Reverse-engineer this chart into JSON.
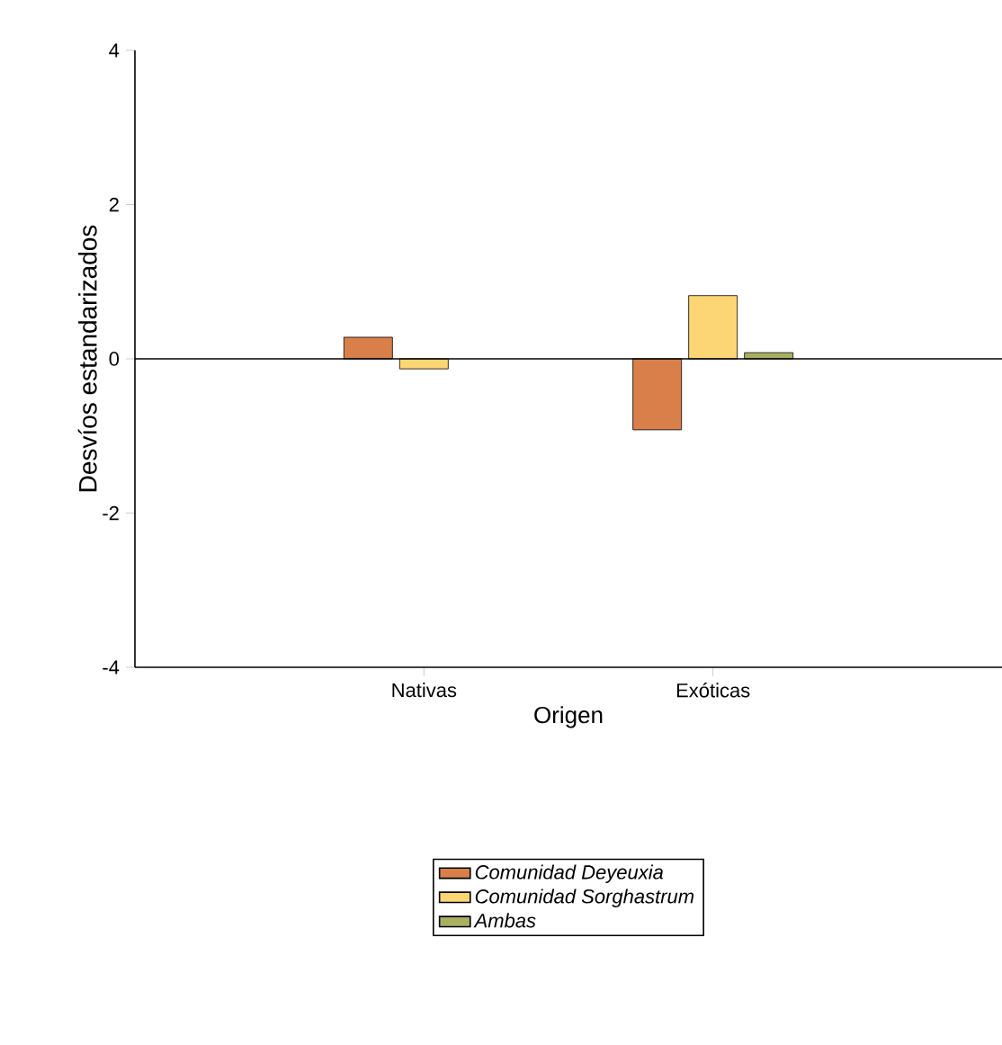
{
  "chart_data": {
    "type": "bar",
    "xlabel": "Origen",
    "ylabel": "Desvíos estandarizados",
    "categories": [
      "Nativas",
      "Exóticas"
    ],
    "series": [
      {
        "name": "Comunidad Deyeuxia",
        "color": "#d9804a",
        "values": [
          0.28,
          -0.92
        ]
      },
      {
        "name": "Comunidad Sorghastrum",
        "color": "#fcd575",
        "values": [
          -0.13,
          0.82
        ]
      },
      {
        "name": "Ambas",
        "color": "#a8b060",
        "values": [
          null,
          0.08
        ]
      }
    ],
    "ylim": [
      -4,
      4
    ],
    "yticks": [
      -4,
      -2,
      0,
      2,
      4
    ],
    "ref_lines": [
      {
        "axis": "y",
        "value": 0
      }
    ],
    "legend": "bottom"
  }
}
